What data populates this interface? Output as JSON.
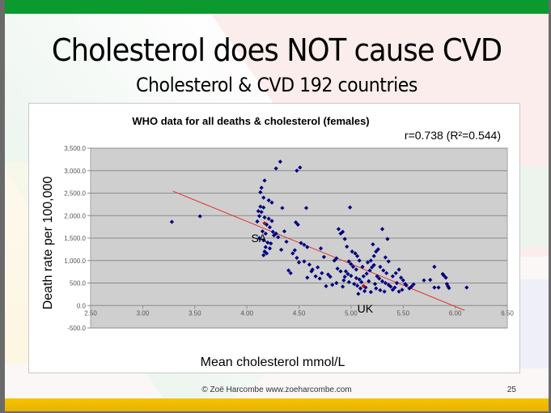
{
  "slide": {
    "title": "Cholesterol does NOT cause CVD",
    "subtitle": "Cholesterol & CVD 192 countries",
    "footer_copyright": "© Zoë Harcombe www.zoeharcombe.com",
    "page_number": "25",
    "colors": {
      "top_bar": "#0a9a2e",
      "bottom_bar": "#f4c400"
    }
  },
  "chart_data": {
    "type": "scatter",
    "title": "WHO data for all deaths & cholesterol (females)",
    "annotation_stat": "r=0.738 (R²=0.544)",
    "xlabel": "Mean cholesterol mmol/L",
    "ylabel": "Death rate per 100,000",
    "xlim": [
      2.5,
      6.5
    ],
    "ylim": [
      -500,
      3500
    ],
    "x_ticks": [
      "2.50",
      "3.00",
      "3.50",
      "4.00",
      "4.50",
      "5.00",
      "5.50",
      "6.00",
      "6.50"
    ],
    "y_ticks": [
      "3,500.0",
      "3,000.0",
      "2,500.0",
      "2,000.0",
      "1,500.0",
      "1,000.0",
      "500.0",
      "0.0",
      "-500.0"
    ],
    "grid": true,
    "plot_background": "#cfcfcf",
    "point_color": "#000080",
    "highlight_color": "#cc0000",
    "trendline": {
      "color": "#e03030",
      "from": [
        3.29,
        2544
      ],
      "to": [
        6.09,
        -108
      ]
    },
    "labels": [
      {
        "text": "SA",
        "x": 4.43,
        "y": 1500
      },
      {
        "text": "UK",
        "x": 5.06,
        "y": -10
      }
    ],
    "highlighted_points": [
      {
        "name": "SA",
        "x": 4.17,
        "y": 1830
      },
      {
        "name": "UK",
        "x": 5.12,
        "y": 432
      }
    ],
    "points": [
      [
        3.28,
        1860
      ],
      [
        3.55,
        1985
      ],
      [
        4.32,
        3200
      ],
      [
        4.28,
        3050
      ],
      [
        4.48,
        3000
      ],
      [
        4.51,
        3070
      ],
      [
        4.17,
        2780
      ],
      [
        4.14,
        2620
      ],
      [
        4.13,
        2520
      ],
      [
        4.16,
        2400
      ],
      [
        4.21,
        2340
      ],
      [
        4.24,
        2290
      ],
      [
        4.13,
        2200
      ],
      [
        4.16,
        2180
      ],
      [
        4.34,
        2170
      ],
      [
        4.57,
        2170
      ],
      [
        4.11,
        2100
      ],
      [
        4.14,
        2080
      ],
      [
        4.12,
        1990
      ],
      [
        4.17,
        1960
      ],
      [
        4.21,
        1930
      ],
      [
        4.24,
        1880
      ],
      [
        4.1,
        1870
      ],
      [
        4.19,
        1800
      ],
      [
        4.22,
        1740
      ],
      [
        4.15,
        1650
      ],
      [
        4.18,
        1600
      ],
      [
        4.25,
        1640
      ],
      [
        4.12,
        1500
      ],
      [
        4.16,
        1450
      ],
      [
        4.2,
        1400
      ],
      [
        4.23,
        1380
      ],
      [
        4.18,
        1300
      ],
      [
        4.22,
        1270
      ],
      [
        4.17,
        1200
      ],
      [
        4.16,
        1120
      ],
      [
        4.19,
        1160
      ],
      [
        4.3,
        1520
      ],
      [
        4.38,
        1420
      ],
      [
        4.47,
        1850
      ],
      [
        4.49,
        1800
      ],
      [
        4.52,
        1390
      ],
      [
        4.55,
        1350
      ],
      [
        4.58,
        1300
      ],
      [
        4.46,
        1230
      ],
      [
        4.4,
        780
      ],
      [
        4.42,
        720
      ],
      [
        4.48,
        1060
      ],
      [
        4.5,
        960
      ],
      [
        4.55,
        980
      ],
      [
        4.6,
        910
      ],
      [
        4.63,
        800
      ],
      [
        4.68,
        850
      ],
      [
        4.62,
        760
      ],
      [
        4.71,
        1270
      ],
      [
        4.74,
        1080
      ],
      [
        4.78,
        690
      ],
      [
        4.8,
        640
      ],
      [
        4.84,
        1000
      ],
      [
        4.86,
        1050
      ],
      [
        4.88,
        1700
      ],
      [
        4.9,
        1600
      ],
      [
        4.92,
        1640
      ],
      [
        4.94,
        1480
      ],
      [
        4.96,
        1310
      ],
      [
        4.99,
        2183
      ],
      [
        4.82,
        460
      ],
      [
        4.76,
        430
      ],
      [
        4.86,
        500
      ],
      [
        4.92,
        420
      ],
      [
        4.7,
        600
      ],
      [
        4.98,
        980
      ],
      [
        5.01,
        1200
      ],
      [
        5.04,
        1160
      ],
      [
        5.06,
        1100
      ],
      [
        5.08,
        1000
      ],
      [
        5.0,
        920
      ],
      [
        5.02,
        860
      ],
      [
        4.95,
        760
      ],
      [
        4.97,
        700
      ],
      [
        5.0,
        660
      ],
      [
        5.05,
        610
      ],
      [
        5.08,
        580
      ],
      [
        5.1,
        520
      ],
      [
        4.93,
        560
      ],
      [
        4.98,
        520
      ],
      [
        5.03,
        480
      ],
      [
        5.06,
        440
      ],
      [
        5.09,
        380
      ],
      [
        5.14,
        400
      ],
      [
        5.12,
        650
      ],
      [
        5.15,
        710
      ],
      [
        5.18,
        780
      ],
      [
        5.2,
        850
      ],
      [
        5.22,
        900
      ],
      [
        5.16,
        960
      ],
      [
        5.19,
        1000
      ],
      [
        5.22,
        1100
      ],
      [
        5.24,
        1200
      ],
      [
        5.26,
        1250
      ],
      [
        5.21,
        1360
      ],
      [
        5.35,
        1480
      ],
      [
        5.3,
        1700
      ],
      [
        5.33,
        1070
      ],
      [
        5.36,
        980
      ],
      [
        5.28,
        860
      ],
      [
        5.31,
        780
      ],
      [
        5.34,
        720
      ],
      [
        5.25,
        650
      ],
      [
        5.27,
        600
      ],
      [
        5.3,
        540
      ],
      [
        5.33,
        500
      ],
      [
        5.36,
        460
      ],
      [
        5.38,
        420
      ],
      [
        5.24,
        380
      ],
      [
        5.28,
        340
      ],
      [
        5.32,
        310
      ],
      [
        5.4,
        350
      ],
      [
        5.42,
        400
      ],
      [
        5.44,
        500
      ],
      [
        5.4,
        650
      ],
      [
        5.43,
        720
      ],
      [
        5.46,
        800
      ],
      [
        5.48,
        620
      ],
      [
        5.5,
        560
      ],
      [
        5.52,
        480
      ],
      [
        5.46,
        310
      ],
      [
        5.49,
        350
      ],
      [
        5.53,
        450
      ],
      [
        5.56,
        380
      ],
      [
        5.58,
        420
      ],
      [
        5.6,
        470
      ],
      [
        5.7,
        560
      ],
      [
        5.76,
        570
      ],
      [
        5.8,
        860
      ],
      [
        5.8,
        400
      ],
      [
        5.84,
        400
      ],
      [
        5.88,
        700
      ],
      [
        5.89,
        670
      ],
      [
        5.91,
        620
      ],
      [
        5.92,
        480
      ],
      [
        5.93,
        430
      ],
      [
        5.94,
        390
      ],
      [
        6.11,
        400
      ],
      [
        4.87,
        820
      ],
      [
        4.9,
        760
      ],
      [
        4.94,
        640
      ],
      [
        5.05,
        800
      ],
      [
        5.11,
        860
      ],
      [
        5.17,
        540
      ],
      [
        5.23,
        480
      ],
      [
        5.13,
        320
      ],
      [
        5.19,
        300
      ],
      [
        5.07,
        260
      ],
      [
        4.66,
        650
      ],
      [
        4.72,
        720
      ],
      [
        4.58,
        620
      ],
      [
        4.44,
        1160
      ],
      [
        4.36,
        1650
      ],
      [
        4.28,
        1600
      ],
      [
        4.26,
        1560
      ],
      [
        4.33,
        1240
      ]
    ]
  }
}
